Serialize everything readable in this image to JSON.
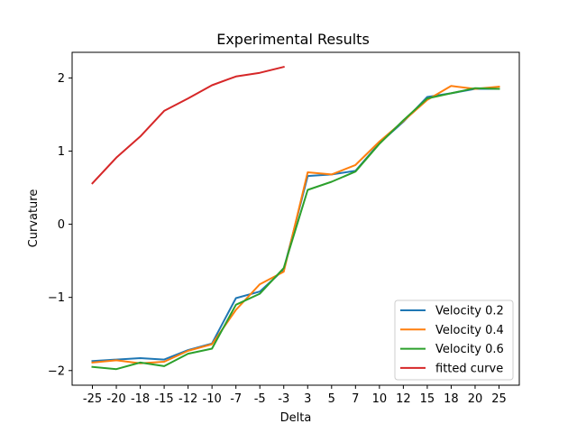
{
  "chart_data": {
    "type": "line",
    "title": "Experimental Results",
    "xlabel": "Delta",
    "ylabel": "Curvature",
    "categories": [
      "-25",
      "-20",
      "-18",
      "-15",
      "-12",
      "-10",
      "-7",
      "-5",
      "-3",
      "3",
      "5",
      "7",
      "10",
      "12",
      "15",
      "18",
      "20",
      "25"
    ],
    "ylim": [
      -2.2,
      2.35
    ],
    "yticks": [
      -2,
      -1,
      0,
      1,
      2
    ],
    "ytick_labels": [
      "−2",
      "−1",
      "0",
      "1",
      "2"
    ],
    "grid": false,
    "legend_position": "lower-right",
    "series": [
      {
        "name": "Velocity 0.2",
        "color": "#1f77b4",
        "values": [
          -1.87,
          -1.85,
          -1.83,
          -1.85,
          -1.72,
          -1.63,
          -1.01,
          -0.92,
          -0.62,
          0.66,
          0.68,
          0.73,
          1.11,
          1.4,
          1.74,
          1.79,
          1.85,
          1.85
        ]
      },
      {
        "name": "Velocity 0.4",
        "color": "#ff7f0e",
        "values": [
          -1.89,
          -1.86,
          -1.9,
          -1.88,
          -1.73,
          -1.64,
          -1.17,
          -0.82,
          -0.65,
          0.71,
          0.68,
          0.81,
          1.13,
          1.41,
          1.7,
          1.89,
          1.85,
          1.88
        ]
      },
      {
        "name": "Velocity 0.6",
        "color": "#2ca02c",
        "values": [
          -1.95,
          -1.98,
          -1.89,
          -1.94,
          -1.77,
          -1.7,
          -1.1,
          -0.95,
          -0.6,
          0.47,
          0.58,
          0.72,
          1.1,
          1.42,
          1.72,
          1.79,
          1.86,
          1.85
        ]
      },
      {
        "name": "fitted curve",
        "color": "#d62728",
        "values": [
          0.56,
          0.91,
          1.2,
          1.55,
          1.72,
          1.9,
          2.02,
          2.07,
          2.15,
          null,
          null,
          null,
          null,
          null,
          null,
          null,
          null,
          null
        ]
      }
    ]
  }
}
